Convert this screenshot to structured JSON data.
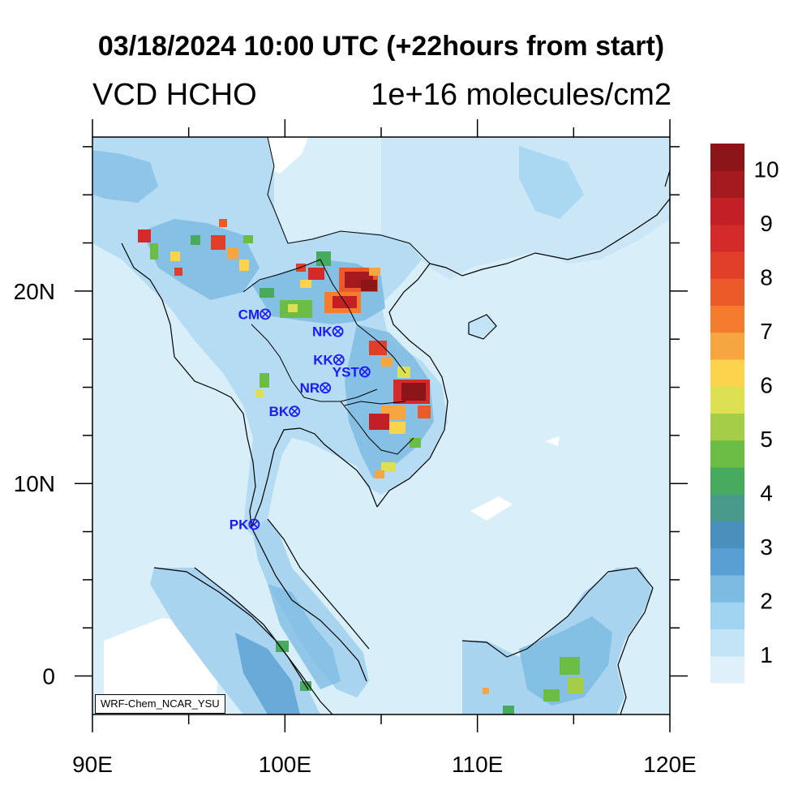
{
  "title": "03/18/2024 10:00 UTC (+22hours from start)",
  "subtitle_left": "VCD HCHO",
  "subtitle_right": "1e+16 molecules/cm2",
  "credit": "WRF-Chem_NCAR_YSU",
  "map": {
    "lon_range": [
      90,
      120
    ],
    "lat_range": [
      -2,
      28
    ],
    "x_ticks": [
      {
        "value": 90,
        "label": "90E"
      },
      {
        "value": 100,
        "label": "100E"
      },
      {
        "value": 110,
        "label": "110E"
      },
      {
        "value": 120,
        "label": "120E"
      }
    ],
    "y_ticks": [
      {
        "value": 0,
        "label": "0"
      },
      {
        "value": 10,
        "label": "10N"
      },
      {
        "value": 20,
        "label": "20N"
      }
    ],
    "ocean_color": "#d8eef9",
    "coast_color": "#000000"
  },
  "cities": [
    {
      "code": "CM",
      "lon": 98.98,
      "lat": 18.8
    },
    {
      "code": "NK",
      "lon": 102.75,
      "lat": 17.9
    },
    {
      "code": "KK",
      "lon": 102.8,
      "lat": 16.43
    },
    {
      "code": "YST",
      "lon": 104.15,
      "lat": 15.8
    },
    {
      "code": "NR",
      "lon": 102.1,
      "lat": 14.97
    },
    {
      "code": "BK",
      "lon": 100.5,
      "lat": 13.75
    },
    {
      "code": "PK",
      "lon": 98.4,
      "lat": 7.88
    }
  ],
  "city_marker_color": "#1a1aff",
  "colorbar": {
    "labels": [
      "1",
      "2",
      "3",
      "4",
      "5",
      "6",
      "7",
      "8",
      "9",
      "10"
    ],
    "colors": [
      "#dff0fb",
      "#c3e4f6",
      "#a1d4f0",
      "#7ebbe2",
      "#5a9fd3",
      "#4b8fbd",
      "#4a9a8c",
      "#48aa5e",
      "#6cbd45",
      "#a6cd48",
      "#dde053",
      "#fbd34d",
      "#f7a541",
      "#f57c2e",
      "#eb5a28",
      "#e23f2a",
      "#d52a2a",
      "#c21f26",
      "#a51a1f",
      "#8b1518"
    ]
  }
}
